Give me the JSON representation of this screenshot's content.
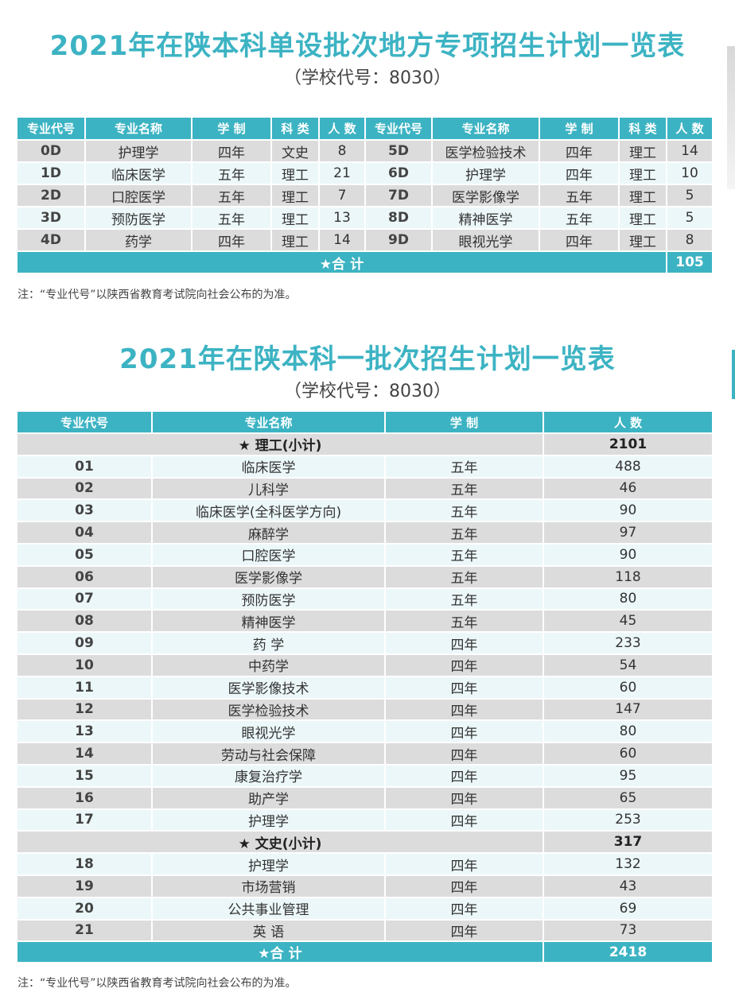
{
  "section1": {
    "title": "2021年在陕本科单设批次地方专项招生计划一览表",
    "subtitle": "（学校代号：8030）",
    "headers": [
      "专业代号",
      "专业名称",
      "学 制",
      "科 类",
      "人 数",
      "专业代号",
      "专业名称",
      "学 制",
      "科 类",
      "人 数"
    ],
    "rows": [
      {
        "l": [
          "0D",
          "护理学",
          "四年",
          "文史",
          "8"
        ],
        "r": [
          "5D",
          "医学检验技术",
          "四年",
          "理工",
          "14"
        ]
      },
      {
        "l": [
          "1D",
          "临床医学",
          "五年",
          "理工",
          "21"
        ],
        "r": [
          "6D",
          "护理学",
          "四年",
          "理工",
          "10"
        ]
      },
      {
        "l": [
          "2D",
          "口腔医学",
          "五年",
          "理工",
          "7"
        ],
        "r": [
          "7D",
          "医学影像学",
          "五年",
          "理工",
          "5"
        ]
      },
      {
        "l": [
          "3D",
          "预防医学",
          "五年",
          "理工",
          "13"
        ],
        "r": [
          "8D",
          "精神医学",
          "五年",
          "理工",
          "5"
        ]
      },
      {
        "l": [
          "4D",
          "药学",
          "四年",
          "理工",
          "14"
        ],
        "r": [
          "9D",
          "眼视光学",
          "四年",
          "理工",
          "8"
        ]
      }
    ],
    "total_label": "★合 计",
    "total_value": "105",
    "note": "注：“专业代号”以陕西省教育考试院向社会公布的为准。"
  },
  "section2": {
    "title": "2021年在陕本科一批次招生计划一览表",
    "subtitle": "（学校代号：8030）",
    "headers": [
      "专业代号",
      "专业名称",
      "学 制",
      "人 数"
    ],
    "rows": [
      {
        "type": "sub",
        "label": "★ 理工(小计)",
        "value": "2101"
      },
      {
        "code": "01",
        "name": "临床医学",
        "years": "五年",
        "count": "488"
      },
      {
        "code": "02",
        "name": "儿科学",
        "years": "五年",
        "count": "46"
      },
      {
        "code": "03",
        "name": "临床医学(全科医学方向)",
        "years": "五年",
        "count": "90"
      },
      {
        "code": "04",
        "name": "麻醉学",
        "years": "五年",
        "count": "97"
      },
      {
        "code": "05",
        "name": "口腔医学",
        "years": "五年",
        "count": "90"
      },
      {
        "code": "06",
        "name": "医学影像学",
        "years": "五年",
        "count": "118"
      },
      {
        "code": "07",
        "name": "预防医学",
        "years": "五年",
        "count": "80"
      },
      {
        "code": "08",
        "name": "精神医学",
        "years": "五年",
        "count": "45"
      },
      {
        "code": "09",
        "name": "药 学",
        "years": "四年",
        "count": "233"
      },
      {
        "code": "10",
        "name": "中药学",
        "years": "四年",
        "count": "54"
      },
      {
        "code": "11",
        "name": "医学影像技术",
        "years": "四年",
        "count": "60"
      },
      {
        "code": "12",
        "name": "医学检验技术",
        "years": "四年",
        "count": "147"
      },
      {
        "code": "13",
        "name": "眼视光学",
        "years": "四年",
        "count": "80"
      },
      {
        "code": "14",
        "name": "劳动与社会保障",
        "years": "四年",
        "count": "60"
      },
      {
        "code": "15",
        "name": "康复治疗学",
        "years": "四年",
        "count": "95"
      },
      {
        "code": "16",
        "name": "助产学",
        "years": "四年",
        "count": "65"
      },
      {
        "code": "17",
        "name": "护理学",
        "years": "四年",
        "count": "253"
      },
      {
        "type": "sub",
        "label": "★ 文史(小计)",
        "value": "317"
      },
      {
        "code": "18",
        "name": "护理学",
        "years": "四年",
        "count": "132"
      },
      {
        "code": "19",
        "name": "市场营销",
        "years": "四年",
        "count": "43"
      },
      {
        "code": "20",
        "name": "公共事业管理",
        "years": "四年",
        "count": "69"
      },
      {
        "code": "21",
        "name": "英 语",
        "years": "四年",
        "count": "73"
      }
    ],
    "total_label": "★合 计",
    "total_value": "2418",
    "note": "注：“专业代号”以陕西省教育考试院向社会公布的为准。"
  },
  "colors": {
    "accent": "#3cb3c3",
    "row_gray": "#dcdcdc",
    "row_light": "#ecf7f9"
  }
}
